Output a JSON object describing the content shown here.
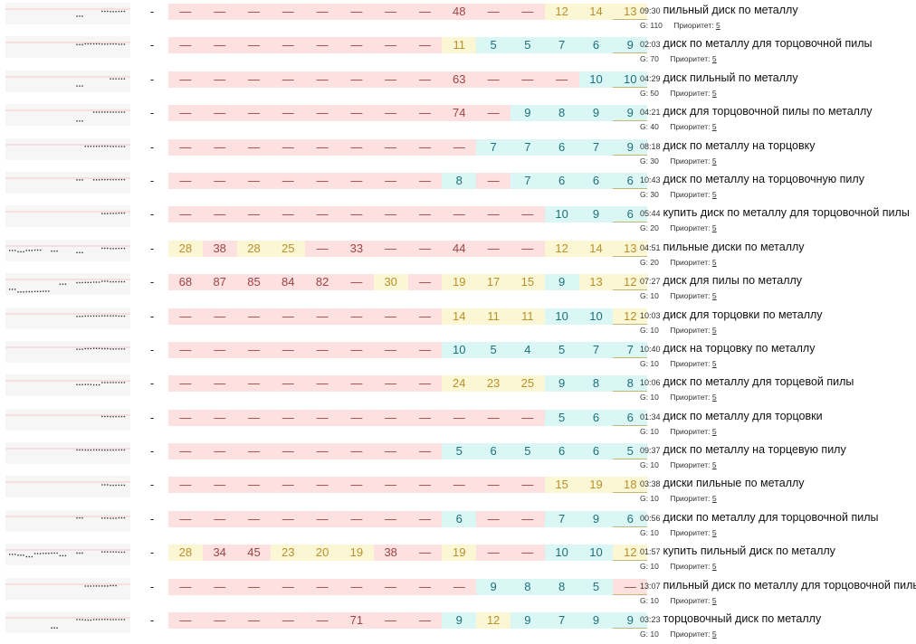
{
  "colors": {
    "red_bg": "#fde1e1",
    "red_text": "#9c4444",
    "yellow_bg": "#fbf6d3",
    "yellow_text": "#b9902d",
    "cyan_bg": "#dbf7f5",
    "cyan_text": "#1d6f7a"
  },
  "g_prefix": "G:",
  "priority_label": "Приоритет:",
  "rows": [
    {
      "dash": "-",
      "time": "09:30",
      "phrase": "пильный диск по металлу",
      "g": "110",
      "priority": "5",
      "cells": [
        {
          "v": "—",
          "c": "r"
        },
        {
          "v": "—",
          "c": "r"
        },
        {
          "v": "—",
          "c": "r"
        },
        {
          "v": "—",
          "c": "r"
        },
        {
          "v": "—",
          "c": "r"
        },
        {
          "v": "—",
          "c": "r"
        },
        {
          "v": "—",
          "c": "r"
        },
        {
          "v": "—",
          "c": "r"
        },
        {
          "v": "48",
          "c": "r"
        },
        {
          "v": "—",
          "c": "r"
        },
        {
          "v": "—",
          "c": "r"
        },
        {
          "v": "12",
          "c": "y"
        },
        {
          "v": "14",
          "c": "y"
        },
        {
          "v": "13",
          "c": "y"
        }
      ]
    },
    {
      "dash": "-",
      "time": "02:03",
      "phrase": "диск по металлу для торцовочной пилы",
      "g": "70",
      "priority": "5",
      "cells": [
        {
          "v": "—",
          "c": "r"
        },
        {
          "v": "—",
          "c": "r"
        },
        {
          "v": "—",
          "c": "r"
        },
        {
          "v": "—",
          "c": "r"
        },
        {
          "v": "—",
          "c": "r"
        },
        {
          "v": "—",
          "c": "r"
        },
        {
          "v": "—",
          "c": "r"
        },
        {
          "v": "—",
          "c": "r"
        },
        {
          "v": "11",
          "c": "y"
        },
        {
          "v": "5",
          "c": "c"
        },
        {
          "v": "5",
          "c": "c"
        },
        {
          "v": "7",
          "c": "c"
        },
        {
          "v": "6",
          "c": "c"
        },
        {
          "v": "9",
          "c": "c"
        }
      ]
    },
    {
      "dash": "-",
      "time": "04:29",
      "phrase": "диск пильный по металлу",
      "g": "50",
      "priority": "5",
      "cells": [
        {
          "v": "—",
          "c": "r"
        },
        {
          "v": "—",
          "c": "r"
        },
        {
          "v": "—",
          "c": "r"
        },
        {
          "v": "—",
          "c": "r"
        },
        {
          "v": "—",
          "c": "r"
        },
        {
          "v": "—",
          "c": "r"
        },
        {
          "v": "—",
          "c": "r"
        },
        {
          "v": "—",
          "c": "r"
        },
        {
          "v": "63",
          "c": "r"
        },
        {
          "v": "—",
          "c": "r"
        },
        {
          "v": "—",
          "c": "r"
        },
        {
          "v": "—",
          "c": "r"
        },
        {
          "v": "10",
          "c": "c"
        },
        {
          "v": "10",
          "c": "c"
        }
      ]
    },
    {
      "dash": "-",
      "time": "04:21",
      "phrase": "диск для торцовочной пилы по металлу",
      "g": "40",
      "priority": "5",
      "cells": [
        {
          "v": "—",
          "c": "r"
        },
        {
          "v": "—",
          "c": "r"
        },
        {
          "v": "—",
          "c": "r"
        },
        {
          "v": "—",
          "c": "r"
        },
        {
          "v": "—",
          "c": "r"
        },
        {
          "v": "—",
          "c": "r"
        },
        {
          "v": "—",
          "c": "r"
        },
        {
          "v": "—",
          "c": "r"
        },
        {
          "v": "74",
          "c": "r"
        },
        {
          "v": "—",
          "c": "r"
        },
        {
          "v": "9",
          "c": "c"
        },
        {
          "v": "8",
          "c": "c"
        },
        {
          "v": "9",
          "c": "c"
        },
        {
          "v": "9",
          "c": "c"
        }
      ]
    },
    {
      "dash": "-",
      "time": "08:18",
      "phrase": "диск по металлу на торцовку",
      "g": "30",
      "priority": "5",
      "cells": [
        {
          "v": "—",
          "c": "r"
        },
        {
          "v": "—",
          "c": "r"
        },
        {
          "v": "—",
          "c": "r"
        },
        {
          "v": "—",
          "c": "r"
        },
        {
          "v": "—",
          "c": "r"
        },
        {
          "v": "—",
          "c": "r"
        },
        {
          "v": "—",
          "c": "r"
        },
        {
          "v": "—",
          "c": "r"
        },
        {
          "v": "—",
          "c": "r"
        },
        {
          "v": "7",
          "c": "c"
        },
        {
          "v": "7",
          "c": "c"
        },
        {
          "v": "6",
          "c": "c"
        },
        {
          "v": "7",
          "c": "c"
        },
        {
          "v": "9",
          "c": "c"
        }
      ]
    },
    {
      "dash": "-",
      "time": "10:43",
      "phrase": "диск по металлу на торцовочную пилу",
      "g": "30",
      "priority": "5",
      "cells": [
        {
          "v": "—",
          "c": "r"
        },
        {
          "v": "—",
          "c": "r"
        },
        {
          "v": "—",
          "c": "r"
        },
        {
          "v": "—",
          "c": "r"
        },
        {
          "v": "—",
          "c": "r"
        },
        {
          "v": "—",
          "c": "r"
        },
        {
          "v": "—",
          "c": "r"
        },
        {
          "v": "—",
          "c": "r"
        },
        {
          "v": "8",
          "c": "c"
        },
        {
          "v": "—",
          "c": "r"
        },
        {
          "v": "7",
          "c": "c"
        },
        {
          "v": "6",
          "c": "c"
        },
        {
          "v": "6",
          "c": "c"
        },
        {
          "v": "6",
          "c": "c"
        }
      ]
    },
    {
      "dash": "-",
      "time": "05:44",
      "phrase": "купить диск по металлу для торцовочной пилы",
      "g": "20",
      "priority": "5",
      "cells": [
        {
          "v": "—",
          "c": "r"
        },
        {
          "v": "—",
          "c": "r"
        },
        {
          "v": "—",
          "c": "r"
        },
        {
          "v": "—",
          "c": "r"
        },
        {
          "v": "—",
          "c": "r"
        },
        {
          "v": "—",
          "c": "r"
        },
        {
          "v": "—",
          "c": "r"
        },
        {
          "v": "—",
          "c": "r"
        },
        {
          "v": "—",
          "c": "r"
        },
        {
          "v": "—",
          "c": "r"
        },
        {
          "v": "—",
          "c": "r"
        },
        {
          "v": "10",
          "c": "c"
        },
        {
          "v": "9",
          "c": "c"
        },
        {
          "v": "6",
          "c": "c"
        }
      ]
    },
    {
      "dash": "-",
      "time": "04:51",
      "phrase": "пильные диски по металлу",
      "g": "20",
      "priority": "5",
      "cells": [
        {
          "v": "28",
          "c": "y"
        },
        {
          "v": "38",
          "c": "r"
        },
        {
          "v": "28",
          "c": "y"
        },
        {
          "v": "25",
          "c": "y"
        },
        {
          "v": "—",
          "c": "r"
        },
        {
          "v": "33",
          "c": "r"
        },
        {
          "v": "—",
          "c": "r"
        },
        {
          "v": "—",
          "c": "r"
        },
        {
          "v": "44",
          "c": "r"
        },
        {
          "v": "—",
          "c": "r"
        },
        {
          "v": "—",
          "c": "r"
        },
        {
          "v": "12",
          "c": "y"
        },
        {
          "v": "14",
          "c": "y"
        },
        {
          "v": "13",
          "c": "y"
        }
      ]
    },
    {
      "dash": "-",
      "time": "07:27",
      "phrase": "диск для пилы по металлу",
      "g": "10",
      "priority": "5",
      "cells": [
        {
          "v": "68",
          "c": "r"
        },
        {
          "v": "87",
          "c": "r"
        },
        {
          "v": "85",
          "c": "r"
        },
        {
          "v": "84",
          "c": "r"
        },
        {
          "v": "82",
          "c": "r"
        },
        {
          "v": "—",
          "c": "r"
        },
        {
          "v": "30",
          "c": "y"
        },
        {
          "v": "—",
          "c": "r"
        },
        {
          "v": "19",
          "c": "y"
        },
        {
          "v": "17",
          "c": "y"
        },
        {
          "v": "15",
          "c": "y"
        },
        {
          "v": "9",
          "c": "c"
        },
        {
          "v": "13",
          "c": "y"
        },
        {
          "v": "12",
          "c": "y"
        }
      ]
    },
    {
      "dash": "-",
      "time": "10:03",
      "phrase": "диск для торцовки по металлу",
      "g": "10",
      "priority": "5",
      "cells": [
        {
          "v": "—",
          "c": "r"
        },
        {
          "v": "—",
          "c": "r"
        },
        {
          "v": "—",
          "c": "r"
        },
        {
          "v": "—",
          "c": "r"
        },
        {
          "v": "—",
          "c": "r"
        },
        {
          "v": "—",
          "c": "r"
        },
        {
          "v": "—",
          "c": "r"
        },
        {
          "v": "—",
          "c": "r"
        },
        {
          "v": "14",
          "c": "y"
        },
        {
          "v": "11",
          "c": "y"
        },
        {
          "v": "11",
          "c": "y"
        },
        {
          "v": "10",
          "c": "c"
        },
        {
          "v": "10",
          "c": "c"
        },
        {
          "v": "12",
          "c": "y"
        }
      ]
    },
    {
      "dash": "-",
      "time": "10:40",
      "phrase": "диск на торцовку по металлу",
      "g": "10",
      "priority": "5",
      "cells": [
        {
          "v": "—",
          "c": "r"
        },
        {
          "v": "—",
          "c": "r"
        },
        {
          "v": "—",
          "c": "r"
        },
        {
          "v": "—",
          "c": "r"
        },
        {
          "v": "—",
          "c": "r"
        },
        {
          "v": "—",
          "c": "r"
        },
        {
          "v": "—",
          "c": "r"
        },
        {
          "v": "—",
          "c": "r"
        },
        {
          "v": "10",
          "c": "c"
        },
        {
          "v": "5",
          "c": "c"
        },
        {
          "v": "4",
          "c": "c"
        },
        {
          "v": "5",
          "c": "c"
        },
        {
          "v": "7",
          "c": "c"
        },
        {
          "v": "7",
          "c": "c"
        }
      ]
    },
    {
      "dash": "-",
      "time": "10:06",
      "phrase": "диск по металлу для торцевой пилы",
      "g": "10",
      "priority": "5",
      "cells": [
        {
          "v": "—",
          "c": "r"
        },
        {
          "v": "—",
          "c": "r"
        },
        {
          "v": "—",
          "c": "r"
        },
        {
          "v": "—",
          "c": "r"
        },
        {
          "v": "—",
          "c": "r"
        },
        {
          "v": "—",
          "c": "r"
        },
        {
          "v": "—",
          "c": "r"
        },
        {
          "v": "—",
          "c": "r"
        },
        {
          "v": "24",
          "c": "y"
        },
        {
          "v": "23",
          "c": "y"
        },
        {
          "v": "25",
          "c": "y"
        },
        {
          "v": "9",
          "c": "c"
        },
        {
          "v": "8",
          "c": "c"
        },
        {
          "v": "8",
          "c": "c"
        }
      ]
    },
    {
      "dash": "-",
      "time": "01:34",
      "phrase": "диск по металлу для торцовки",
      "g": "10",
      "priority": "5",
      "cells": [
        {
          "v": "—",
          "c": "r"
        },
        {
          "v": "—",
          "c": "r"
        },
        {
          "v": "—",
          "c": "r"
        },
        {
          "v": "—",
          "c": "r"
        },
        {
          "v": "—",
          "c": "r"
        },
        {
          "v": "—",
          "c": "r"
        },
        {
          "v": "—",
          "c": "r"
        },
        {
          "v": "—",
          "c": "r"
        },
        {
          "v": "—",
          "c": "r"
        },
        {
          "v": "—",
          "c": "r"
        },
        {
          "v": "—",
          "c": "r"
        },
        {
          "v": "5",
          "c": "c"
        },
        {
          "v": "6",
          "c": "c"
        },
        {
          "v": "6",
          "c": "c"
        }
      ]
    },
    {
      "dash": "-",
      "time": "09:37",
      "phrase": "диск по металлу на торцевую пилу",
      "g": "10",
      "priority": "5",
      "cells": [
        {
          "v": "—",
          "c": "r"
        },
        {
          "v": "—",
          "c": "r"
        },
        {
          "v": "—",
          "c": "r"
        },
        {
          "v": "—",
          "c": "r"
        },
        {
          "v": "—",
          "c": "r"
        },
        {
          "v": "—",
          "c": "r"
        },
        {
          "v": "—",
          "c": "r"
        },
        {
          "v": "—",
          "c": "r"
        },
        {
          "v": "5",
          "c": "c"
        },
        {
          "v": "6",
          "c": "c"
        },
        {
          "v": "5",
          "c": "c"
        },
        {
          "v": "6",
          "c": "c"
        },
        {
          "v": "6",
          "c": "c"
        },
        {
          "v": "5",
          "c": "c"
        }
      ]
    },
    {
      "dash": "-",
      "time": "03:38",
      "phrase": "диски пильные по металлу",
      "g": "10",
      "priority": "5",
      "cells": [
        {
          "v": "—",
          "c": "r"
        },
        {
          "v": "—",
          "c": "r"
        },
        {
          "v": "—",
          "c": "r"
        },
        {
          "v": "—",
          "c": "r"
        },
        {
          "v": "—",
          "c": "r"
        },
        {
          "v": "—",
          "c": "r"
        },
        {
          "v": "—",
          "c": "r"
        },
        {
          "v": "—",
          "c": "r"
        },
        {
          "v": "—",
          "c": "r"
        },
        {
          "v": "—",
          "c": "r"
        },
        {
          "v": "—",
          "c": "r"
        },
        {
          "v": "15",
          "c": "y"
        },
        {
          "v": "19",
          "c": "y"
        },
        {
          "v": "18",
          "c": "y"
        }
      ]
    },
    {
      "dash": "-",
      "time": "00:56",
      "phrase": "диски по металлу для торцовочной пилы",
      "g": "10",
      "priority": "5",
      "cells": [
        {
          "v": "—",
          "c": "r"
        },
        {
          "v": "—",
          "c": "r"
        },
        {
          "v": "—",
          "c": "r"
        },
        {
          "v": "—",
          "c": "r"
        },
        {
          "v": "—",
          "c": "r"
        },
        {
          "v": "—",
          "c": "r"
        },
        {
          "v": "—",
          "c": "r"
        },
        {
          "v": "—",
          "c": "r"
        },
        {
          "v": "6",
          "c": "c"
        },
        {
          "v": "—",
          "c": "r"
        },
        {
          "v": "—",
          "c": "r"
        },
        {
          "v": "7",
          "c": "c"
        },
        {
          "v": "9",
          "c": "c"
        },
        {
          "v": "6",
          "c": "c"
        }
      ]
    },
    {
      "dash": "-",
      "time": "01:57",
      "phrase": "купить пильный диск по металлу",
      "g": "10",
      "priority": "5",
      "cells": [
        {
          "v": "28",
          "c": "y"
        },
        {
          "v": "34",
          "c": "r"
        },
        {
          "v": "45",
          "c": "r"
        },
        {
          "v": "23",
          "c": "y"
        },
        {
          "v": "20",
          "c": "y"
        },
        {
          "v": "19",
          "c": "y"
        },
        {
          "v": "38",
          "c": "r"
        },
        {
          "v": "—",
          "c": "r"
        },
        {
          "v": "19",
          "c": "y"
        },
        {
          "v": "—",
          "c": "r"
        },
        {
          "v": "—",
          "c": "r"
        },
        {
          "v": "10",
          "c": "c"
        },
        {
          "v": "10",
          "c": "c"
        },
        {
          "v": "12",
          "c": "y"
        }
      ]
    },
    {
      "dash": "-",
      "time": "13:07",
      "phrase": "пильный диск по металлу для торцовочной пилы",
      "g": "10",
      "priority": "5",
      "cells": [
        {
          "v": "—",
          "c": "r"
        },
        {
          "v": "—",
          "c": "r"
        },
        {
          "v": "—",
          "c": "r"
        },
        {
          "v": "—",
          "c": "r"
        },
        {
          "v": "—",
          "c": "r"
        },
        {
          "v": "—",
          "c": "r"
        },
        {
          "v": "—",
          "c": "r"
        },
        {
          "v": "—",
          "c": "r"
        },
        {
          "v": "—",
          "c": "r"
        },
        {
          "v": "9",
          "c": "c"
        },
        {
          "v": "8",
          "c": "c"
        },
        {
          "v": "8",
          "c": "c"
        },
        {
          "v": "5",
          "c": "c"
        },
        {
          "v": "—",
          "c": "r"
        }
      ]
    },
    {
      "dash": "-",
      "time": "03:23",
      "phrase": "торцовочный диск по металлу",
      "g": "10",
      "priority": "5",
      "cells": [
        {
          "v": "—",
          "c": "r"
        },
        {
          "v": "—",
          "c": "r"
        },
        {
          "v": "—",
          "c": "r"
        },
        {
          "v": "—",
          "c": "r"
        },
        {
          "v": "—",
          "c": "r"
        },
        {
          "v": "71",
          "c": "r"
        },
        {
          "v": "—",
          "c": "r"
        },
        {
          "v": "—",
          "c": "r"
        },
        {
          "v": "9",
          "c": "c"
        },
        {
          "v": "12",
          "c": "y"
        },
        {
          "v": "9",
          "c": "c"
        },
        {
          "v": "7",
          "c": "c"
        },
        {
          "v": "9",
          "c": "c"
        },
        {
          "v": "9",
          "c": "c"
        }
      ]
    }
  ]
}
